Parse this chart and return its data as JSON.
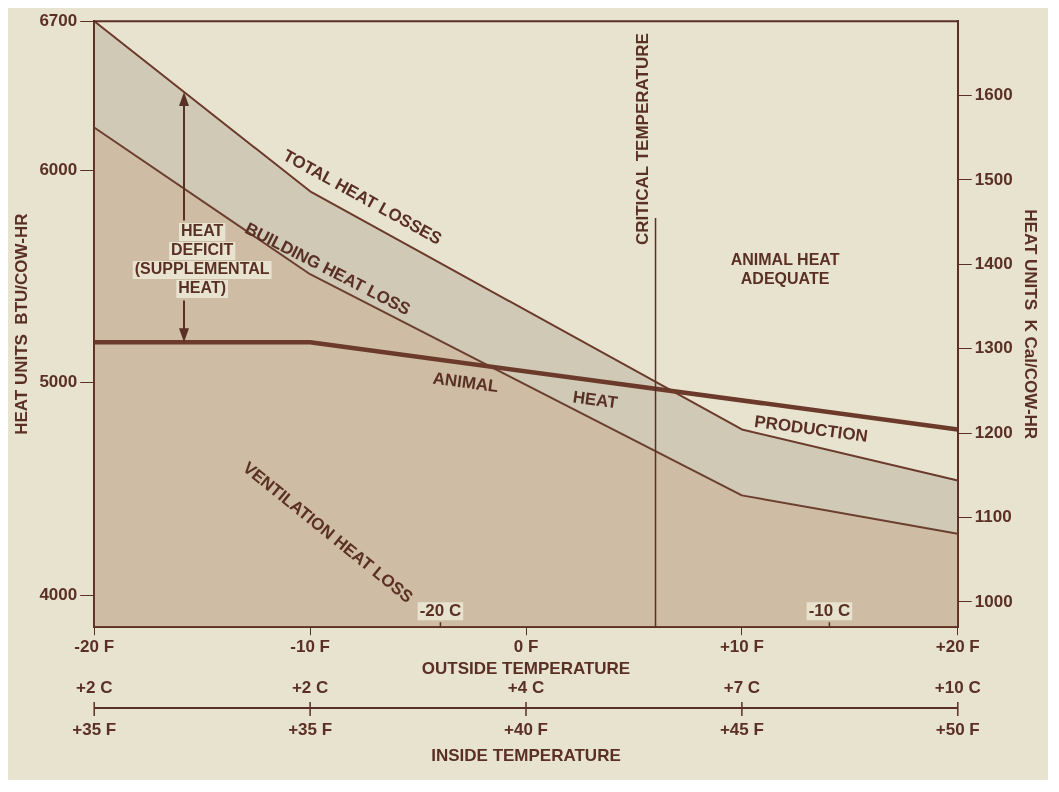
{
  "chart_data": {
    "type": "line",
    "xlabel": "OUTSIDE TEMPERATURE",
    "ylabel": "HEAT UNITS  BTU/COW-HR",
    "y2label": "HEAT UNITS  K Cal/COW-HR",
    "xlim": [
      -20,
      20
    ],
    "xticks": [
      {
        "value": -20,
        "label": "-20 F"
      },
      {
        "value": -10,
        "label": "-10 F"
      },
      {
        "value": 0,
        "label": "0 F"
      },
      {
        "value": 10,
        "label": "+10 F"
      },
      {
        "value": 20,
        "label": "+20 F"
      }
    ],
    "x2lim": [
      -28.9,
      -6.7
    ],
    "x2ticks": [
      {
        "value": -20,
        "label": "-20 C"
      },
      {
        "value": -10,
        "label": "-10 C"
      }
    ],
    "ylim": [
      3850,
      6700
    ],
    "yticks": [
      4000,
      5000,
      6000,
      6700
    ],
    "y2lim": [
      970,
      1688
    ],
    "y2ticks": [
      1000,
      1100,
      1200,
      1300,
      1400,
      1500,
      1600
    ],
    "series": [
      {
        "name": "TOTAL HEAT LOSSES",
        "type": "area",
        "color": "#6b3a2a",
        "x": [
          -20,
          -10,
          10,
          20
        ],
        "values": [
          6700,
          5900,
          4780,
          4540
        ]
      },
      {
        "name": "VENTILATION HEAT LOSS",
        "type": "area",
        "color": "#6b3a2a",
        "x": [
          -20,
          -10,
          10,
          20
        ],
        "values": [
          6200,
          5510,
          4470,
          4290
        ]
      },
      {
        "name": "ANIMAL HEAT PRODUCTION",
        "type": "line",
        "color": "#6b3a2a",
        "x": [
          -20,
          -10,
          20
        ],
        "values": [
          5190,
          5190,
          4780
        ]
      }
    ],
    "ref_lines": [
      {
        "axis": "x",
        "value": 6,
        "label": "CRITICAL TEMPERATURE"
      }
    ],
    "annotations": [
      "BUILDING HEAT LOSS",
      "HEAT DEFICIT (SUPPLEMENTAL HEAT)",
      "ANIMAL HEAT ADEQUATE",
      "+2 C",
      "+2 C",
      "+4 C",
      "+7 C",
      "+10 C",
      "+35 F",
      "+35 F",
      "+40 F",
      "+45 F",
      "+50 F",
      "INSIDE TEMPERATURE"
    ],
    "grid": false,
    "legend": false
  }
}
